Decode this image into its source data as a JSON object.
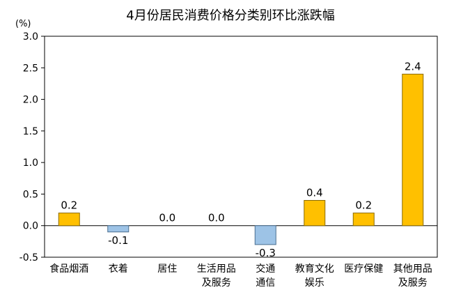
{
  "chart_data": {
    "type": "bar",
    "title": "4月份居民消费价格分类别环比涨跌幅",
    "ylabel": "(%)",
    "ylim": [
      -0.5,
      3.0
    ],
    "yticks": [
      "-0.5",
      "0.0",
      "0.5",
      "1.0",
      "1.5",
      "2.0",
      "2.5",
      "3.0"
    ],
    "categories": [
      [
        "食品烟酒"
      ],
      [
        "衣着"
      ],
      [
        "居住"
      ],
      [
        "生活用品",
        "及服务"
      ],
      [
        "交通",
        "通信"
      ],
      [
        "教育文化",
        "娱乐"
      ],
      [
        "医疗保健"
      ],
      [
        "其他用品",
        "及服务"
      ]
    ],
    "values": [
      0.2,
      -0.1,
      0.0,
      0.0,
      -0.3,
      0.4,
      0.2,
      2.4
    ],
    "labels": [
      "0.2",
      "-0.1",
      "0.0",
      "0.0",
      "-0.3",
      "0.4",
      "0.2",
      "2.4"
    ],
    "colors": {
      "positive": "#FFC000",
      "positive_stroke": "#8A6A00",
      "negative": "#9DC3E6",
      "negative_stroke": "#4A6E8F",
      "axis": "#000000"
    },
    "grid": false,
    "legend": "none"
  }
}
